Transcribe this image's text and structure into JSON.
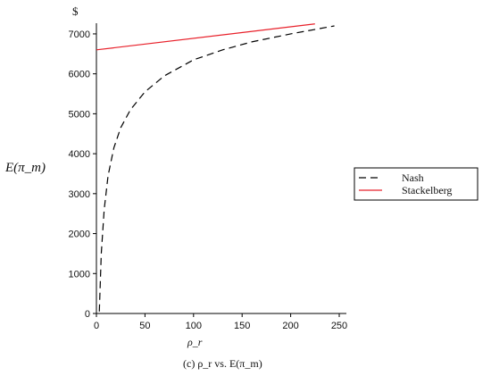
{
  "chart_data": {
    "type": "line",
    "unit_label": "$",
    "ylabel": "E(π_m)",
    "xlabel": "ρ_r",
    "caption": "(c) ρ_r vs. E(π_m)",
    "xlim": [
      0,
      250
    ],
    "ylim": [
      0,
      7200
    ],
    "x_ticks": [
      0,
      50,
      100,
      150,
      200,
      250
    ],
    "y_ticks": [
      0,
      1000,
      2000,
      3000,
      4000,
      5000,
      6000,
      7000
    ],
    "legend_position": "right",
    "series": [
      {
        "name": "Nash",
        "style": "dashed",
        "color": "#000000",
        "x": [
          3,
          5,
          8,
          12,
          18,
          25,
          35,
          50,
          70,
          100,
          130,
          160,
          200,
          245
        ],
        "y": [
          50,
          1500,
          2600,
          3450,
          4150,
          4650,
          5100,
          5550,
          5950,
          6350,
          6600,
          6800,
          7000,
          7200
        ]
      },
      {
        "name": "Stackelberg",
        "style": "solid",
        "color": "#e8202a",
        "x": [
          0,
          225
        ],
        "y": [
          6600,
          7250
        ]
      }
    ]
  }
}
